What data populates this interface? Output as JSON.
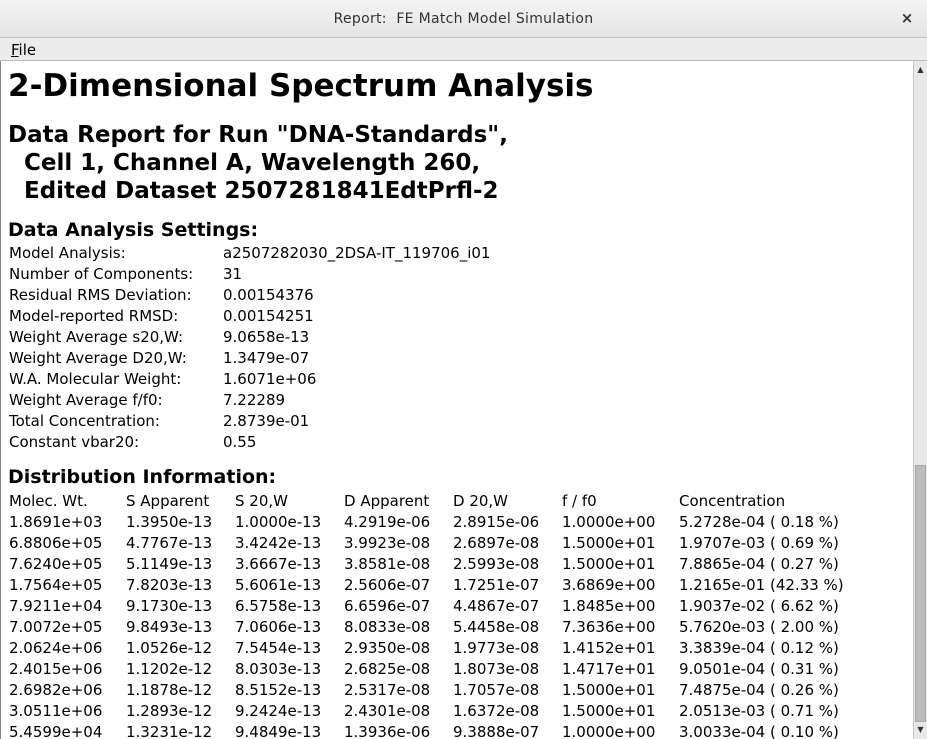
{
  "window": {
    "title": "Report:  FE Match Model Simulation",
    "close_glyph": "×"
  },
  "menubar": {
    "file_mnemonic": "F",
    "file_rest": "ile"
  },
  "report": {
    "title": "2-Dimensional Spectrum Analysis",
    "run_header": {
      "line1": "Data Report for Run \"DNA-Standards\",",
      "line2": "Cell 1, Channel A, Wavelength 260,",
      "line3": "Edited Dataset 2507281841EdtPrfl-2"
    },
    "settings": {
      "title": "Data Analysis Settings:",
      "rows": [
        {
          "label": "Model Analysis:",
          "value": "a2507282030_2DSA-IT_119706_i01"
        },
        {
          "label": "Number of Components:",
          "value": "31"
        },
        {
          "label": "Residual RMS Deviation:",
          "value": "0.00154376"
        },
        {
          "label": "Model-reported RMSD:",
          "value": "0.00154251"
        },
        {
          "label": "Weight Average s20,W:",
          "value": "9.0658e-13"
        },
        {
          "label": "Weight Average D20,W:",
          "value": "1.3479e-07"
        },
        {
          "label": "W.A. Molecular Weight:",
          "value": "1.6071e+06"
        },
        {
          "label": "Weight Average f/f0:",
          "value": "7.22289"
        },
        {
          "label": "Total Concentration:",
          "value": "2.8739e-01"
        },
        {
          "label": "Constant vbar20:",
          "value": "0.55"
        }
      ]
    },
    "distribution": {
      "title": "Distribution Information:",
      "headers": [
        "Molec. Wt.",
        "S Apparent",
        "S 20,W",
        "D Apparent",
        "D 20,W",
        "f / f0",
        "Concentration"
      ],
      "rows": [
        [
          "1.8691e+03",
          "1.3950e-13",
          "1.0000e-13",
          "4.2919e-06",
          "2.8915e-06",
          "1.0000e+00",
          "5.2728e-04 ( 0.18 %)"
        ],
        [
          "6.8806e+05",
          "4.7767e-13",
          "3.4242e-13",
          "3.9923e-08",
          "2.6897e-08",
          "1.5000e+01",
          "1.9707e-03 ( 0.69 %)"
        ],
        [
          "7.6240e+05",
          "5.1149e-13",
          "3.6667e-13",
          "3.8581e-08",
          "2.5993e-08",
          "1.5000e+01",
          "7.8865e-04 ( 0.27 %)"
        ],
        [
          "1.7564e+05",
          "7.8203e-13",
          "5.6061e-13",
          "2.5606e-07",
          "1.7251e-07",
          "3.6869e+00",
          "1.2165e-01 (42.33 %)"
        ],
        [
          "7.9211e+04",
          "9.1730e-13",
          "6.5758e-13",
          "6.6596e-07",
          "4.4867e-07",
          "1.8485e+00",
          "1.9037e-02 ( 6.62 %)"
        ],
        [
          "7.0072e+05",
          "9.8493e-13",
          "7.0606e-13",
          "8.0833e-08",
          "5.4458e-08",
          "7.3636e+00",
          "5.7620e-03 ( 2.00 %)"
        ],
        [
          "2.0624e+06",
          "1.0526e-12",
          "7.5454e-13",
          "2.9350e-08",
          "1.9773e-08",
          "1.4152e+01",
          "3.3839e-04 ( 0.12 %)"
        ],
        [
          "2.4015e+06",
          "1.1202e-12",
          "8.0303e-13",
          "2.6825e-08",
          "1.8073e-08",
          "1.4717e+01",
          "9.0501e-04 ( 0.31 %)"
        ],
        [
          "2.6982e+06",
          "1.1878e-12",
          "8.5152e-13",
          "2.5317e-08",
          "1.7057e-08",
          "1.5000e+01",
          "7.4875e-04 ( 0.26 %)"
        ],
        [
          "3.0511e+06",
          "1.2893e-12",
          "9.2424e-13",
          "2.4301e-08",
          "1.6372e-08",
          "1.5000e+01",
          "2.0513e-03 ( 0.71 %)"
        ],
        [
          "5.4599e+04",
          "1.3231e-12",
          "9.4849e-13",
          "1.3936e-06",
          "9.3888e-07",
          "1.0000e+00",
          "3.0033e-04 ( 0.10 %)"
        ]
      ]
    }
  }
}
